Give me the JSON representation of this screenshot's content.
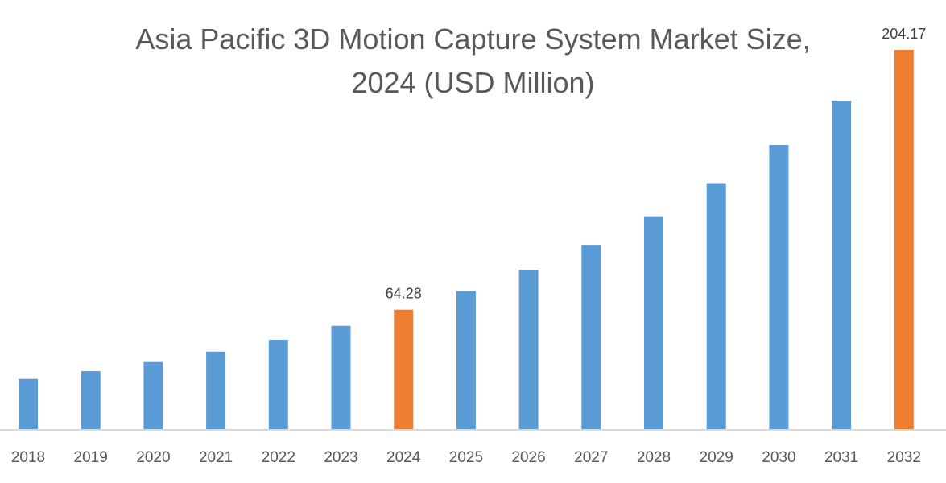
{
  "chart_data": {
    "type": "bar",
    "title_line1": "Asia Pacific 3D Motion Capture System Market Size,",
    "title_line2": "2024 (USD Million)",
    "xlabel": "",
    "ylabel": "",
    "categories": [
      "2018",
      "2019",
      "2020",
      "2021",
      "2022",
      "2023",
      "2024",
      "2025",
      "2026",
      "2027",
      "2028",
      "2029",
      "2030",
      "2031",
      "2032"
    ],
    "values": [
      27.0,
      31.2,
      36.1,
      41.7,
      48.1,
      55.6,
      64.28,
      74.3,
      85.8,
      99.2,
      114.6,
      132.4,
      153.0,
      176.8,
      204.17
    ],
    "data_labels": {
      "2024": "64.28",
      "2032": "204.17"
    },
    "highlight": [
      "2024",
      "2032"
    ],
    "ylim": [
      0,
      204.17
    ],
    "grid": false,
    "legend": "none",
    "colors": {
      "bar": "#5b9bd5",
      "highlight": "#ed7d31",
      "axis": "#d9d9d9",
      "text": "#595959"
    }
  }
}
